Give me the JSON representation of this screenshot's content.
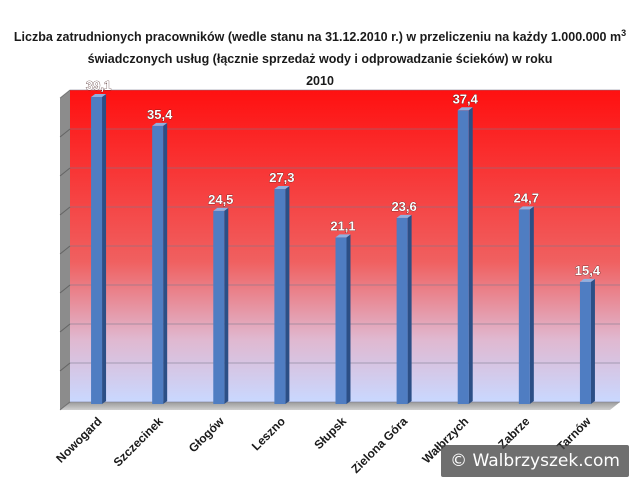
{
  "title": {
    "line1": "Liczba zatrudnionych pracowników (wedle stanu na 31.12.2010 r.) w przeliczeniu na każdy 1.000.000 m",
    "line1_sup": "3",
    "line2": "świadczonych usług (łącznie sprzedaż wody i odprowadzanie ścieków) w roku",
    "line3": "2010"
  },
  "colors": {
    "bar_front": "#4f7dc2",
    "bar_side": "#2c4f86",
    "bar_top": "#8fb0e0",
    "label": "#ffffff",
    "label_stroke": "#3a1010",
    "category_label": "#1a1a1a",
    "bg_top": "#ff1010",
    "bg_bottom": "#c9d8ff"
  },
  "chart_data": {
    "type": "bar",
    "title": "Liczba zatrudnionych pracowników (wedle stanu na 31.12.2010 r.) w przeliczeniu na każdy 1.000.000 m3 świadczonych usług (łącznie sprzedaż wody i odprowadzanie ścieków) w roku 2010",
    "categories": [
      "Nowogard",
      "Szczecinek",
      "Głogów",
      "Leszno",
      "Słupsk",
      "Zielona Góra",
      "Wałbrzych",
      "Zabrze",
      "Tarnów"
    ],
    "values": [
      39.1,
      35.4,
      24.5,
      27.3,
      21.1,
      23.6,
      37.4,
      24.7,
      15.4
    ],
    "value_labels": [
      "39,1",
      "35,4",
      "24,5",
      "27,3",
      "21,1",
      "23,6",
      "37,4",
      "24,7",
      "15,4"
    ],
    "xlabel": "",
    "ylabel": "",
    "ylim": [
      0,
      40
    ],
    "gridlines": [
      0,
      5,
      10,
      15,
      20,
      25,
      30,
      35,
      40
    ],
    "grid": true,
    "legend": "none"
  },
  "watermark": "© Walbrzyszek.com"
}
